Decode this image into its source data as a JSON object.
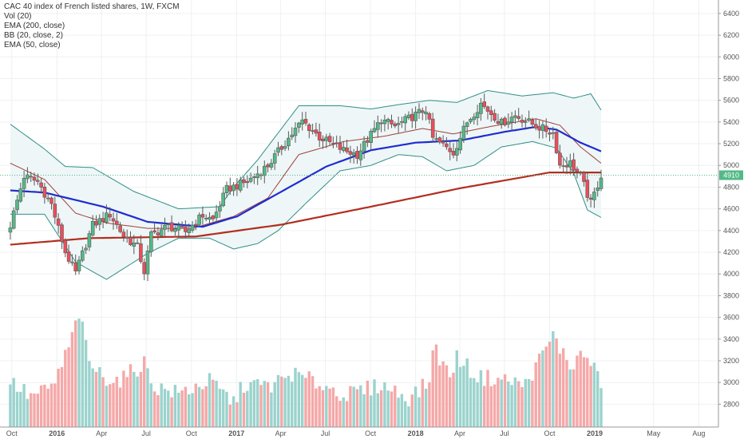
{
  "legend": {
    "title": "CAC 40 index of French listed shares, 1W, FXCM",
    "vol": "Vol (20)",
    "ema200": "EMA (200, close)",
    "bb": "BB (20, close, 2)",
    "ema50": "EMA (50, close)"
  },
  "chart_data": {
    "type": "candlestick",
    "title": "CAC 40 index of French listed shares, 1W, FXCM",
    "x_tick_labels": [
      "Oct",
      "2016",
      "Apr",
      "Jul",
      "Oct",
      "2017",
      "Apr",
      "Jul",
      "Oct",
      "2018",
      "Apr",
      "Jul",
      "Oct",
      "2019",
      "May",
      "Aug"
    ],
    "y_tick_labels": [
      "2800",
      "3000",
      "3200",
      "3400",
      "3600",
      "3800",
      "4000",
      "4200",
      "4400",
      "4600",
      "4800",
      "5000",
      "5200",
      "5400",
      "5600",
      "5800",
      "6000",
      "6200",
      "6400"
    ],
    "ylim": [
      2700,
      6480
    ],
    "last_price_label": "4910",
    "last_price": 4910,
    "colors": {
      "up": "#53b987",
      "down": "#eb4d5c",
      "vol_up": "#9bd3cd",
      "vol_down": "#f5a8a8",
      "ema200": "#b22e1f",
      "ema50": "#1f2ccf",
      "bb_band": "#2f8f86",
      "bb_basis": "#a0403c",
      "bb_fill": "#eef6f7",
      "last_price_line": "#53b987"
    },
    "anchors": [
      [
        "2015-09-28",
        4450
      ],
      [
        "2015-10-26",
        4900
      ],
      [
        "2015-11-23",
        4850
      ],
      [
        "2015-12-21",
        4640
      ],
      [
        "2016-01-18",
        4200
      ],
      [
        "2016-02-08",
        4010
      ],
      [
        "2016-03-14",
        4450
      ],
      [
        "2016-04-18",
        4550
      ],
      [
        "2016-05-16",
        4350
      ],
      [
        "2016-06-13",
        4250
      ],
      [
        "2016-06-27",
        4020
      ],
      [
        "2016-07-11",
        4360
      ],
      [
        "2016-08-15",
        4440
      ],
      [
        "2016-09-19",
        4390
      ],
      [
        "2016-10-24",
        4540
      ],
      [
        "2016-11-14",
        4500
      ],
      [
        "2016-12-12",
        4780
      ],
      [
        "2017-01-23",
        4850
      ],
      [
        "2017-03-06",
        5000
      ],
      [
        "2017-04-24",
        5290
      ],
      [
        "2017-05-15",
        5410
      ],
      [
        "2017-06-19",
        5260
      ],
      [
        "2017-08-07",
        5140
      ],
      [
        "2017-09-04",
        5100
      ],
      [
        "2017-10-23",
        5420
      ],
      [
        "2017-11-20",
        5360
      ],
      [
        "2018-01-22",
        5520
      ],
      [
        "2018-02-05",
        5250
      ],
      [
        "2018-03-19",
        5120
      ],
      [
        "2018-04-16",
        5400
      ],
      [
        "2018-05-14",
        5570
      ],
      [
        "2018-06-25",
        5390
      ],
      [
        "2018-07-23",
        5460
      ],
      [
        "2018-09-10",
        5350
      ],
      [
        "2018-10-08",
        5300
      ],
      [
        "2018-10-22",
        5000
      ],
      [
        "2018-11-12",
        5020
      ],
      [
        "2018-12-03",
        4900
      ],
      [
        "2018-12-24",
        4650
      ],
      [
        "2019-01-14",
        4910
      ]
    ],
    "ema200": [
      [
        "2015-09-28",
        4270
      ],
      [
        "2016-03-07",
        4330
      ],
      [
        "2016-10-10",
        4345
      ],
      [
        "2017-04-03",
        4455
      ],
      [
        "2017-10-02",
        4620
      ],
      [
        "2018-04-02",
        4790
      ],
      [
        "2018-10-01",
        4935
      ],
      [
        "2019-01-14",
        4935
      ]
    ],
    "ema50": [
      [
        "2015-09-28",
        4770
      ],
      [
        "2015-12-07",
        4750
      ],
      [
        "2016-04-04",
        4620
      ],
      [
        "2016-07-04",
        4480
      ],
      [
        "2016-10-24",
        4435
      ],
      [
        "2017-01-02",
        4530
      ],
      [
        "2017-04-03",
        4760
      ],
      [
        "2017-07-03",
        4990
      ],
      [
        "2017-10-02",
        5140
      ],
      [
        "2018-01-01",
        5210
      ],
      [
        "2018-04-02",
        5230
      ],
      [
        "2018-07-02",
        5310
      ],
      [
        "2018-09-03",
        5355
      ],
      [
        "2018-10-15",
        5330
      ],
      [
        "2018-12-03",
        5210
      ],
      [
        "2019-01-14",
        5130
      ]
    ],
    "bb_upper": [
      [
        "2015-09-28",
        5380
      ],
      [
        "2015-12-07",
        5150
      ],
      [
        "2016-01-18",
        4990
      ],
      [
        "2016-03-14",
        4980
      ],
      [
        "2016-06-06",
        4760
      ],
      [
        "2016-09-05",
        4600
      ],
      [
        "2016-11-28",
        4620
      ],
      [
        "2016-12-26",
        4800
      ],
      [
        "2017-02-13",
        5050
      ],
      [
        "2017-03-27",
        5300
      ],
      [
        "2017-05-08",
        5550
      ],
      [
        "2017-07-31",
        5550
      ],
      [
        "2017-10-02",
        5520
      ],
      [
        "2017-11-27",
        5560
      ],
      [
        "2018-01-29",
        5600
      ],
      [
        "2018-03-26",
        5580
      ],
      [
        "2018-05-28",
        5690
      ],
      [
        "2018-08-06",
        5640
      ],
      [
        "2018-10-08",
        5670
      ],
      [
        "2018-11-19",
        5620
      ],
      [
        "2018-12-24",
        5660
      ],
      [
        "2019-01-14",
        5510
      ]
    ],
    "bb_lower": [
      [
        "2015-09-28",
        4550
      ],
      [
        "2015-12-07",
        4550
      ],
      [
        "2016-02-08",
        4110
      ],
      [
        "2016-04-11",
        3950
      ],
      [
        "2016-07-04",
        4190
      ],
      [
        "2016-09-05",
        4330
      ],
      [
        "2016-11-07",
        4330
      ],
      [
        "2016-12-26",
        4230
      ],
      [
        "2017-02-13",
        4280
      ],
      [
        "2017-03-27",
        4400
      ],
      [
        "2017-05-22",
        4650
      ],
      [
        "2017-07-31",
        4950
      ],
      [
        "2017-10-02",
        5000
      ],
      [
        "2017-11-27",
        5100
      ],
      [
        "2018-01-15",
        5080
      ],
      [
        "2018-03-05",
        4950
      ],
      [
        "2018-04-30",
        5000
      ],
      [
        "2018-06-25",
        5170
      ],
      [
        "2018-08-27",
        5220
      ],
      [
        "2018-10-15",
        5160
      ],
      [
        "2018-11-19",
        4930
      ],
      [
        "2018-12-17",
        4590
      ],
      [
        "2019-01-14",
        4520
      ]
    ],
    "bb_basis": [
      [
        "2015-09-28",
        5020
      ],
      [
        "2015-12-07",
        4870
      ],
      [
        "2016-02-08",
        4560
      ],
      [
        "2016-04-11",
        4470
      ],
      [
        "2016-07-04",
        4420
      ],
      [
        "2016-10-03",
        4420
      ],
      [
        "2016-12-26",
        4530
      ],
      [
        "2017-03-06",
        4700
      ],
      [
        "2017-05-08",
        5100
      ],
      [
        "2017-08-07",
        5220
      ],
      [
        "2017-10-30",
        5270
      ],
      [
        "2018-01-15",
        5340
      ],
      [
        "2018-03-19",
        5290
      ],
      [
        "2018-06-04",
        5360
      ],
      [
        "2018-09-03",
        5430
      ],
      [
        "2018-10-22",
        5370
      ],
      [
        "2018-12-03",
        5170
      ],
      [
        "2019-01-14",
        5020
      ]
    ],
    "volume": [
      [
        "2015-09-28",
        3010
      ],
      [
        "2015-11-09",
        2870
      ],
      [
        "2015-12-21",
        2950
      ],
      [
        "2016-01-11",
        3150
      ],
      [
        "2016-02-01",
        3420
      ],
      [
        "2016-02-15",
        3640
      ],
      [
        "2016-03-07",
        3180
      ],
      [
        "2016-04-04",
        3050
      ],
      [
        "2016-05-09",
        3020
      ],
      [
        "2016-06-27",
        3180
      ],
      [
        "2016-07-18",
        2960
      ],
      [
        "2016-09-05",
        2900
      ],
      [
        "2016-11-07",
        3010
      ],
      [
        "2016-12-26",
        2820
      ],
      [
        "2017-01-16",
        2980
      ],
      [
        "2017-03-13",
        2970
      ],
      [
        "2017-04-24",
        3080
      ],
      [
        "2017-06-19",
        2990
      ],
      [
        "2017-08-14",
        2880
      ],
      [
        "2017-10-23",
        2980
      ],
      [
        "2017-12-18",
        2860
      ],
      [
        "2018-01-29",
        3000
      ],
      [
        "2018-02-05",
        3350
      ],
      [
        "2018-03-12",
        3050
      ],
      [
        "2018-03-26",
        3240
      ],
      [
        "2018-05-07",
        3050
      ],
      [
        "2018-06-25",
        3030
      ],
      [
        "2018-08-13",
        2980
      ],
      [
        "2018-10-08",
        3430
      ],
      [
        "2018-10-22",
        3320
      ],
      [
        "2018-11-12",
        3150
      ],
      [
        "2018-12-10",
        3270
      ],
      [
        "2019-01-07",
        3060
      ],
      [
        "2019-01-14",
        3010
      ]
    ]
  }
}
